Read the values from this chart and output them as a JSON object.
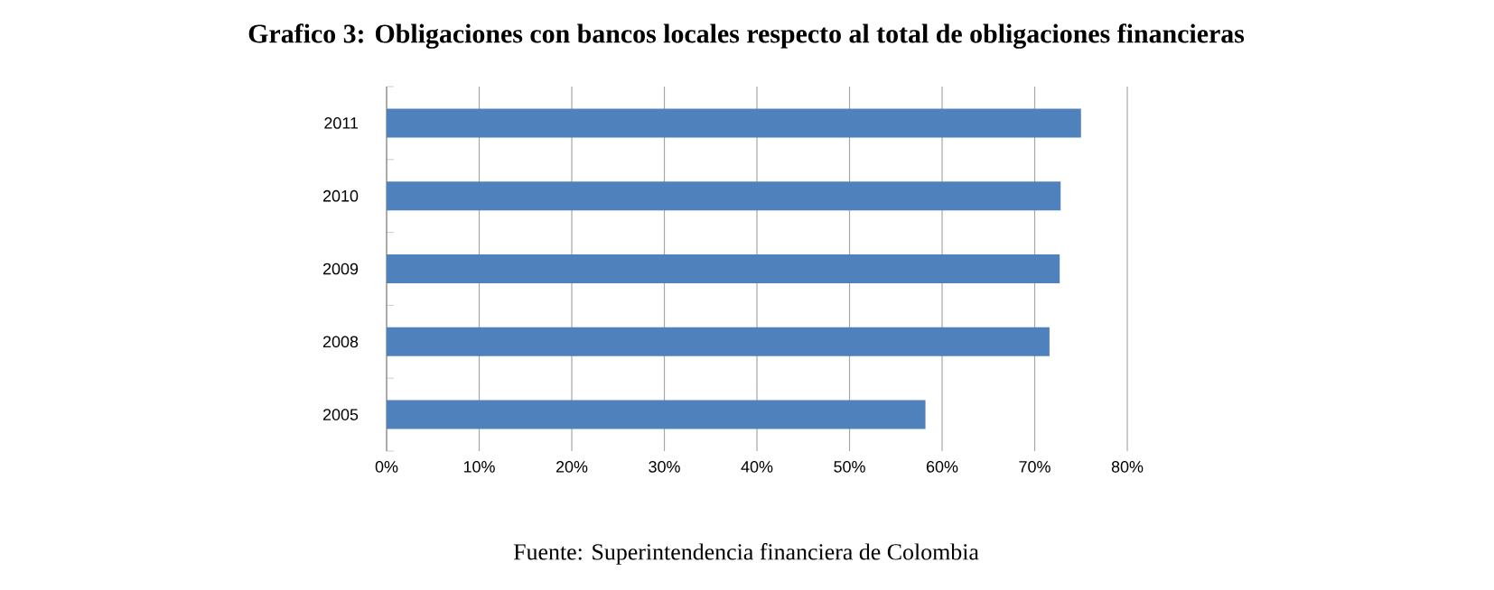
{
  "chart_data": {
    "type": "bar",
    "orientation": "horizontal",
    "title": "Grafico 3: Obligaciones con bancos locales respecto al total de obligaciones financieras",
    "categories": [
      "2011",
      "2010",
      "2009",
      "2008",
      "2005"
    ],
    "values": [
      75,
      72.8,
      72.7,
      71.6,
      58.2
    ],
    "color": "#4f81bd",
    "xlim": [
      0,
      80
    ],
    "xticks": [
      {
        "value": 0,
        "label": "0%"
      },
      {
        "value": 10,
        "label": "10%"
      },
      {
        "value": 20,
        "label": "20%"
      },
      {
        "value": 30,
        "label": "30%"
      },
      {
        "value": 40,
        "label": "40%"
      },
      {
        "value": 50,
        "label": "50%"
      },
      {
        "value": 60,
        "label": "60%"
      },
      {
        "value": 70,
        "label": "70%"
      },
      {
        "value": 80,
        "label": "80%"
      }
    ],
    "grid": "x",
    "annotations": [
      "Fuente: Superintendencia financiera de Colombia"
    ]
  }
}
